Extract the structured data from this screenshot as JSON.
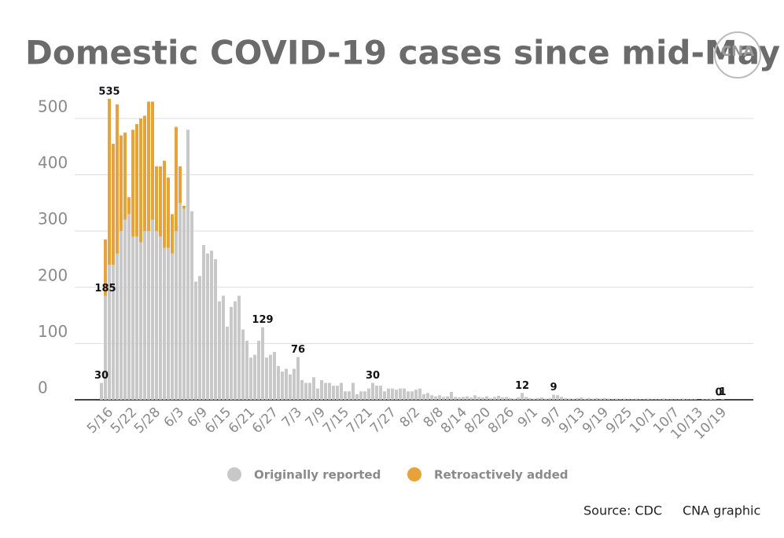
{
  "chart_data": {
    "type": "stacked-bar",
    "title": "Domestic COVID-19 cases since mid-May",
    "categories": [
      null,
      null,
      "5/16",
      null,
      null,
      null,
      null,
      null,
      "5/22",
      null,
      null,
      null,
      null,
      null,
      "5/28",
      null,
      null,
      null,
      null,
      null,
      "6/3",
      null,
      null,
      null,
      null,
      null,
      "6/9",
      null,
      null,
      null,
      null,
      null,
      "6/15",
      null,
      null,
      null,
      null,
      null,
      "6/21",
      null,
      null,
      null,
      null,
      null,
      "6/27",
      null,
      null,
      null,
      null,
      null,
      "7/3",
      null,
      null,
      null,
      null,
      null,
      "7/9",
      null,
      null,
      null,
      null,
      null,
      "7/15",
      null,
      null,
      null,
      null,
      null,
      "7/21",
      null,
      null,
      null,
      null,
      null,
      "7/27",
      null,
      null,
      null,
      null,
      null,
      "8/2",
      null,
      null,
      null,
      null,
      null,
      "8/8",
      null,
      null,
      null,
      null,
      null,
      "8/14",
      null,
      null,
      null,
      null,
      null,
      "8/20",
      null,
      null,
      null,
      null,
      null,
      "8/26",
      null,
      null,
      null,
      null,
      null,
      "9/1",
      null,
      null,
      null,
      null,
      null,
      "9/7",
      null,
      null,
      null,
      null,
      null,
      "9/13",
      null,
      null,
      null,
      null,
      null,
      "9/19",
      null,
      null,
      null,
      null,
      null,
      "9/25",
      null,
      null,
      null,
      null,
      null,
      "10/1",
      null,
      null,
      null,
      null,
      null,
      "10/7",
      null,
      null,
      null,
      null,
      null,
      "10/13",
      null,
      null,
      null,
      null,
      null,
      "10/19"
    ],
    "series": [
      {
        "name": "Originally reported",
        "color": "#c8c8c8",
        "values": [
          30,
          185,
          240,
          240,
          260,
          300,
          320,
          330,
          290,
          290,
          280,
          300,
          300,
          320,
          300,
          290,
          270,
          270,
          260,
          300,
          350,
          340,
          480,
          335,
          210,
          220,
          275,
          260,
          265,
          250,
          175,
          185,
          130,
          165,
          175,
          185,
          125,
          105,
          75,
          80,
          105,
          129,
          75,
          80,
          85,
          60,
          50,
          55,
          45,
          55,
          76,
          35,
          30,
          30,
          40,
          20,
          35,
          30,
          30,
          25,
          25,
          30,
          15,
          15,
          30,
          10,
          15,
          15,
          20,
          30,
          25,
          25,
          15,
          20,
          20,
          18,
          20,
          20,
          15,
          15,
          18,
          20,
          10,
          12,
          8,
          6,
          8,
          5,
          6,
          14,
          5,
          4,
          5,
          6,
          4,
          8,
          5,
          4,
          6,
          3,
          5,
          7,
          4,
          5,
          3,
          2,
          4,
          12,
          5,
          3,
          2,
          3,
          4,
          2,
          3,
          9,
          8,
          5,
          3,
          2,
          2,
          3,
          4,
          2,
          3,
          2,
          3,
          2,
          3,
          2,
          1,
          2,
          1,
          2,
          1,
          1,
          2,
          1,
          1,
          2,
          1,
          1,
          1,
          2,
          1,
          1,
          1,
          1,
          2,
          1,
          1,
          1,
          0,
          1,
          1,
          2,
          1,
          0,
          1
        ]
      },
      {
        "name": "Retroactively added",
        "color": "#e8a23a",
        "values": [
          0,
          100,
          295,
          215,
          265,
          170,
          155,
          30,
          190,
          200,
          220,
          205,
          230,
          210,
          115,
          125,
          155,
          125,
          70,
          185,
          65,
          5,
          0,
          0,
          0,
          0,
          0,
          0,
          0,
          0,
          0,
          0,
          0,
          0,
          0,
          0,
          0,
          0,
          0,
          0,
          0,
          0,
          0,
          0,
          0,
          0,
          0,
          0,
          0,
          0,
          0,
          0,
          0,
          0,
          0,
          0,
          0,
          0,
          0,
          0,
          0,
          0,
          0,
          0,
          0,
          0,
          0,
          0,
          0,
          0,
          0,
          0,
          0,
          0,
          0,
          0,
          0,
          0,
          0,
          0,
          0,
          0,
          0,
          0,
          0,
          0,
          0,
          0,
          0,
          0,
          0,
          0,
          0,
          0,
          0,
          0,
          0,
          0,
          0,
          0,
          0,
          0,
          0,
          0,
          0,
          0,
          0,
          0,
          0,
          0,
          0,
          0,
          0,
          0,
          0,
          0,
          0,
          0,
          0,
          0,
          0,
          0,
          0,
          0,
          0,
          0,
          0,
          0,
          0,
          0,
          0,
          0,
          0,
          0,
          0,
          0,
          0,
          0,
          0,
          0,
          0,
          0,
          0,
          0,
          0,
          0,
          0,
          0,
          0,
          0,
          0,
          0,
          0,
          0,
          0,
          0,
          0,
          0,
          0
        ]
      }
    ],
    "annotations": [
      {
        "index": 0,
        "value": 30
      },
      {
        "index": 1,
        "value": 185
      },
      {
        "index": 2,
        "value": 535
      },
      {
        "index": 41,
        "value": 129
      },
      {
        "index": 50,
        "value": 76
      },
      {
        "index": 69,
        "value": 30
      },
      {
        "index": 107,
        "value": 12
      },
      {
        "index": 115,
        "value": 9
      },
      {
        "index": 157,
        "value": 0
      },
      {
        "index": 158,
        "value": 1
      }
    ],
    "ylim": [
      0,
      525
    ],
    "yticks": [
      0,
      100,
      200,
      300,
      400,
      500
    ],
    "grid": true,
    "source": "Source: CDC",
    "credit": "CNA graphic"
  }
}
